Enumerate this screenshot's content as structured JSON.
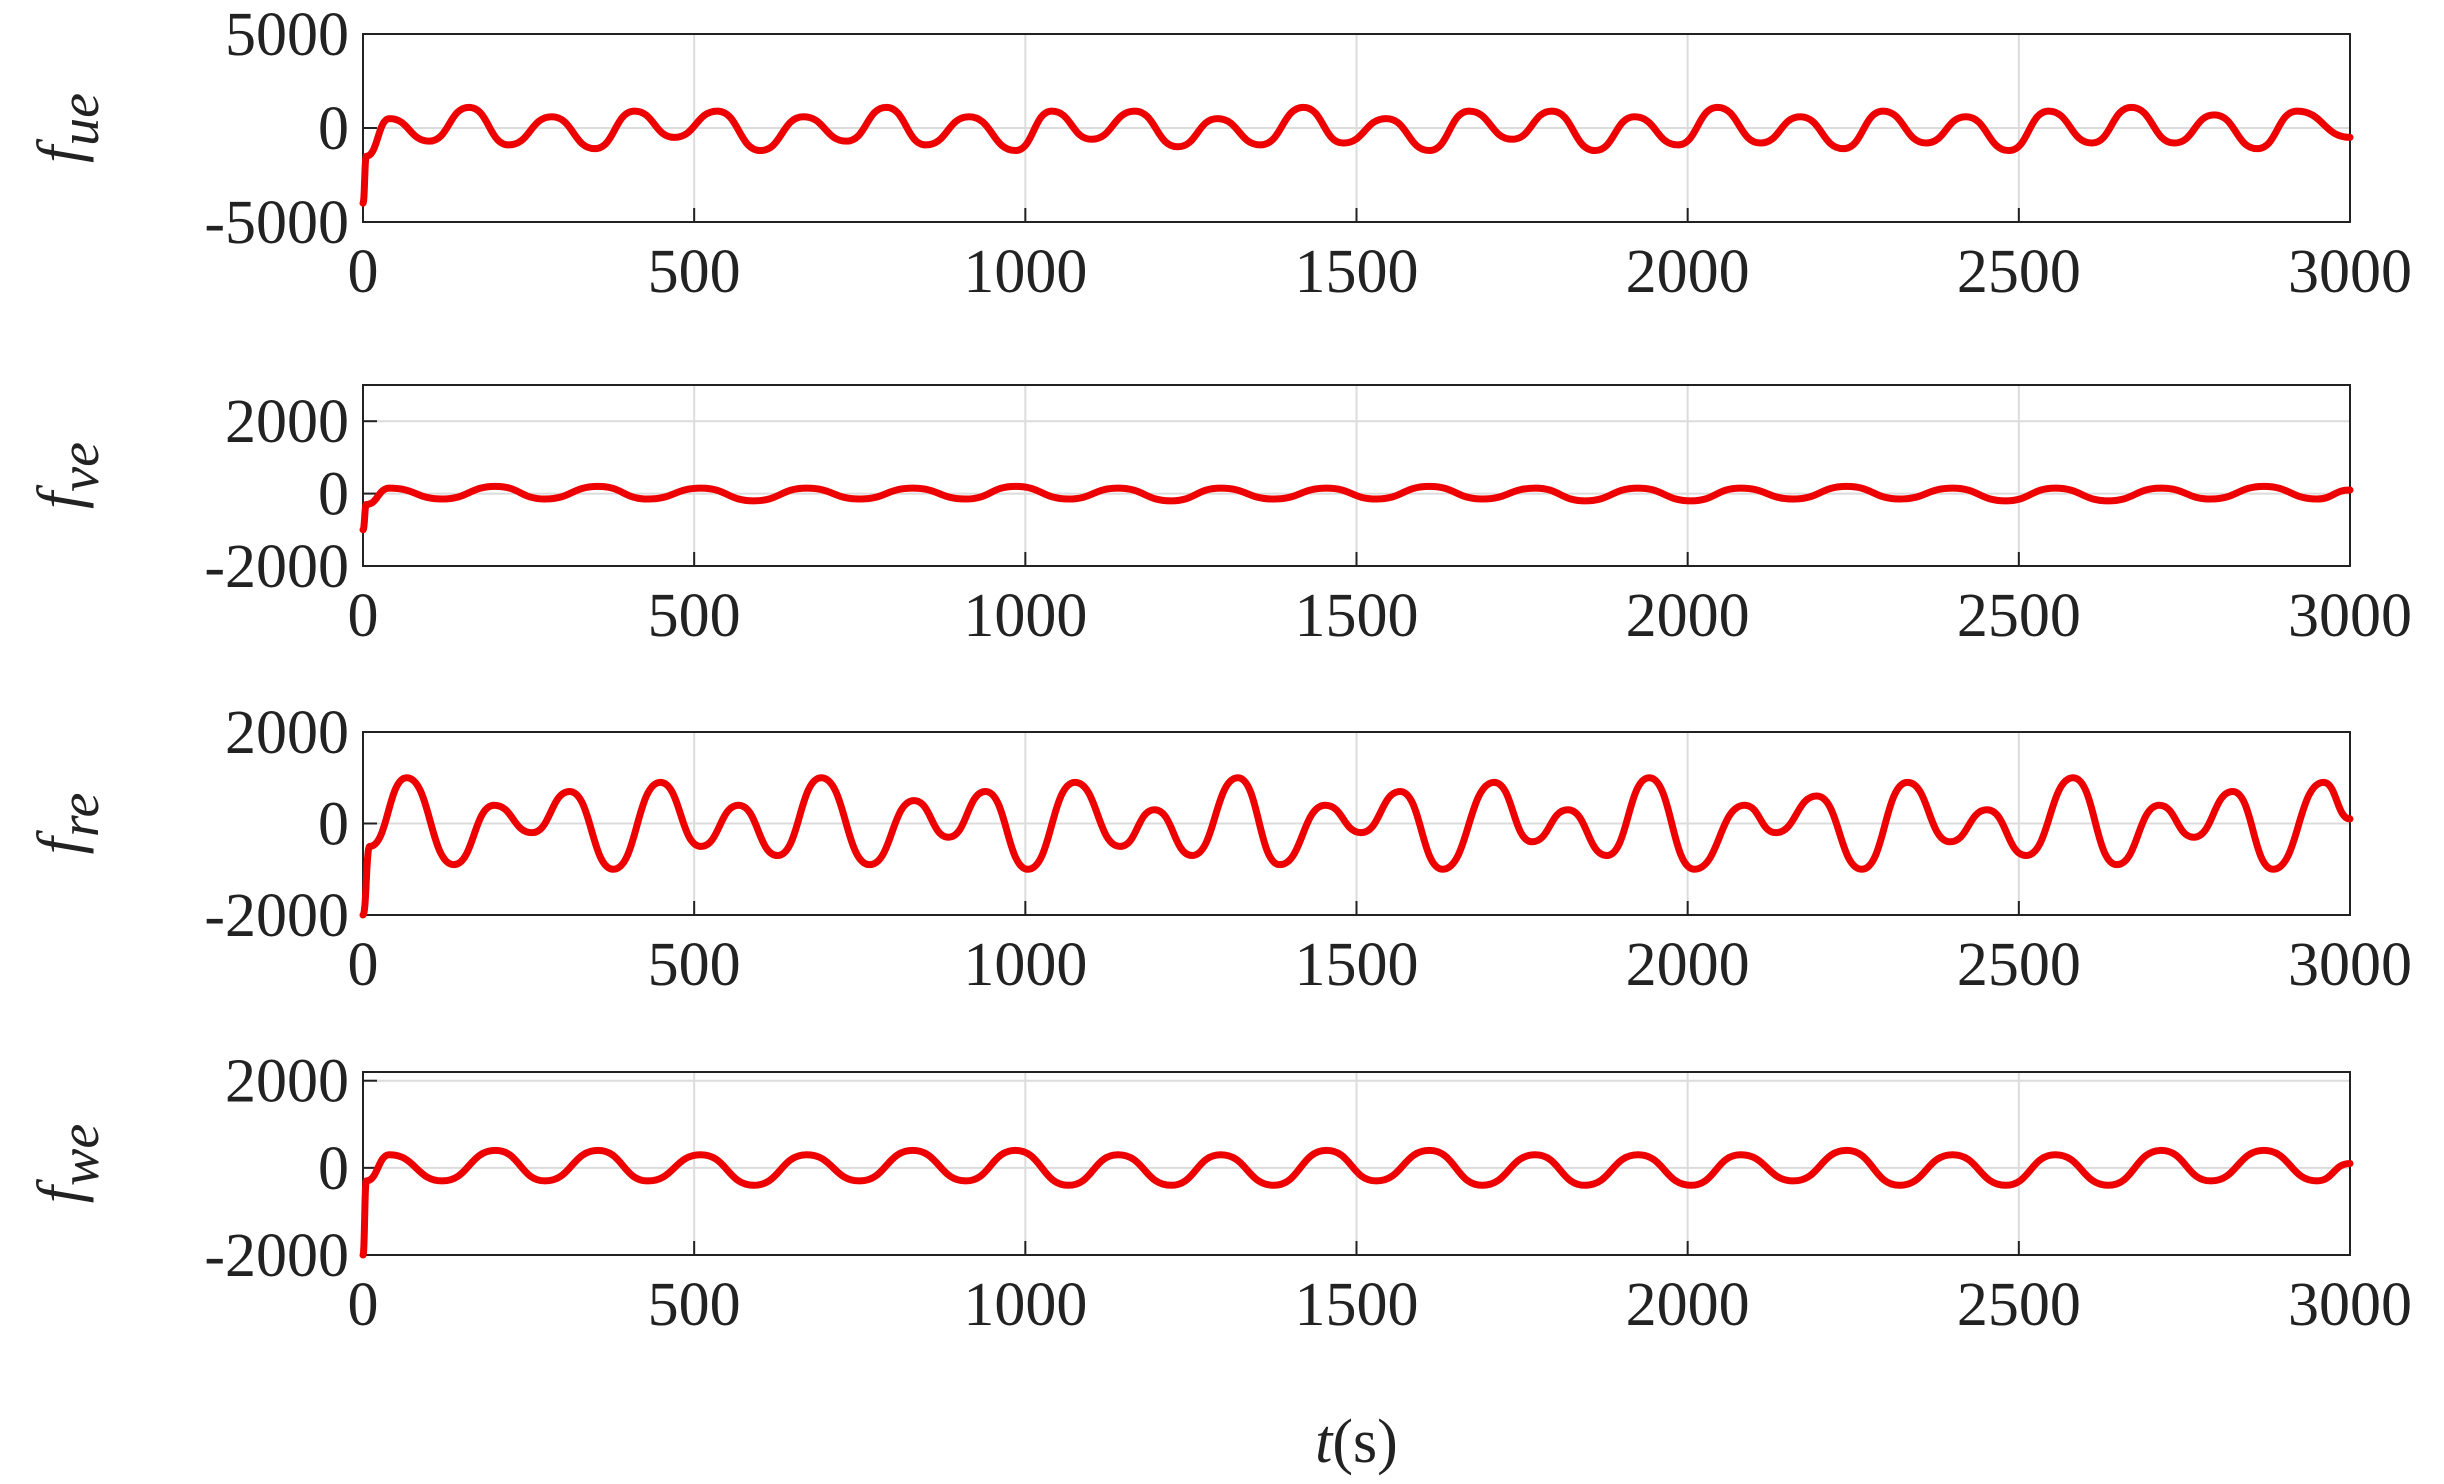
{
  "chart_data": [
    {
      "type": "line",
      "ylabel": "f",
      "ylabel_sub": "ue",
      "color": "#ee0000",
      "grid": true,
      "xlim": [
        0,
        3000
      ],
      "xticks": [
        0,
        500,
        1000,
        1500,
        2000,
        2500,
        3000
      ],
      "ylim": [
        -5000,
        5000
      ],
      "yticks": [
        -5000,
        0,
        5000
      ],
      "x": [
        0,
        5,
        40,
        100,
        160,
        220,
        285,
        350,
        410,
        470,
        535,
        600,
        665,
        730,
        790,
        850,
        915,
        985,
        1040,
        1100,
        1165,
        1230,
        1290,
        1355,
        1420,
        1480,
        1545,
        1610,
        1670,
        1735,
        1795,
        1860,
        1920,
        1985,
        2045,
        2110,
        2170,
        2235,
        2295,
        2360,
        2420,
        2485,
        2545,
        2610,
        2670,
        2735,
        2795,
        2860,
        2920,
        3000
      ],
      "values": [
        -4000,
        -1500,
        500,
        -700,
        1100,
        -900,
        600,
        -1100,
        900,
        -500,
        900,
        -1200,
        600,
        -700,
        1100,
        -900,
        600,
        -1200,
        900,
        -600,
        900,
        -1000,
        500,
        -900,
        1100,
        -800,
        500,
        -1200,
        900,
        -600,
        900,
        -1200,
        600,
        -900,
        1100,
        -800,
        600,
        -1100,
        900,
        -800,
        600,
        -1200,
        900,
        -800,
        1100,
        -800,
        700,
        -1100,
        900,
        -500
      ]
    },
    {
      "type": "line",
      "ylabel": "f",
      "ylabel_sub": "ve",
      "color": "#ee0000",
      "grid": true,
      "xlim": [
        0,
        3000
      ],
      "xticks": [
        0,
        500,
        1000,
        1500,
        2000,
        2500,
        3000
      ],
      "ylim": [
        -2000,
        3000
      ],
      "yticks": [
        -2000,
        0,
        2000
      ],
      "x": [
        0,
        5,
        40,
        120,
        200,
        275,
        355,
        430,
        510,
        590,
        670,
        750,
        830,
        910,
        985,
        1065,
        1140,
        1220,
        1295,
        1375,
        1455,
        1530,
        1610,
        1690,
        1770,
        1845,
        1925,
        2005,
        2080,
        2160,
        2240,
        2320,
        2400,
        2480,
        2555,
        2635,
        2715,
        2790,
        2870,
        2950,
        3000
      ],
      "values": [
        -1000,
        -300,
        150,
        -150,
        200,
        -150,
        200,
        -150,
        150,
        -200,
        150,
        -150,
        150,
        -150,
        200,
        -150,
        150,
        -200,
        150,
        -150,
        150,
        -150,
        200,
        -150,
        150,
        -200,
        150,
        -200,
        150,
        -150,
        200,
        -150,
        150,
        -200,
        150,
        -200,
        150,
        -150,
        200,
        -150,
        100
      ]
    },
    {
      "type": "line",
      "ylabel": "f",
      "ylabel_sub": "re",
      "color": "#ee0000",
      "grid": true,
      "xlim": [
        0,
        3000
      ],
      "xticks": [
        0,
        500,
        1000,
        1500,
        2000,
        2500,
        3000
      ],
      "ylim": [
        -2000,
        2000
      ],
      "yticks": [
        -2000,
        0,
        2000
      ],
      "x": [
        0,
        10,
        66,
        137,
        198,
        255,
        312,
        378,
        449,
        510,
        567,
        626,
        692,
        765,
        832,
        884,
        940,
        1004,
        1075,
        1143,
        1195,
        1252,
        1321,
        1384,
        1453,
        1507,
        1566,
        1630,
        1708,
        1765,
        1819,
        1878,
        1942,
        2010,
        2086,
        2133,
        2195,
        2263,
        2332,
        2396,
        2452,
        2511,
        2582,
        2648,
        2712,
        2764,
        2823,
        2884,
        2960,
        3000
      ],
      "values": [
        -2000,
        -500,
        1000,
        -900,
        400,
        -200,
        700,
        -1000,
        900,
        -500,
        400,
        -700,
        1000,
        -900,
        500,
        -300,
        700,
        -1000,
        900,
        -500,
        300,
        -700,
        1000,
        -900,
        400,
        -200,
        700,
        -1000,
        900,
        -400,
        300,
        -700,
        1000,
        -1000,
        400,
        -200,
        600,
        -1000,
        900,
        -400,
        300,
        -700,
        1000,
        -900,
        400,
        -300,
        700,
        -1000,
        900,
        100
      ]
    },
    {
      "type": "line",
      "ylabel": "f",
      "ylabel_sub": "we",
      "color": "#ee0000",
      "grid": true,
      "xlim": [
        0,
        3000
      ],
      "xticks": [
        0,
        500,
        1000,
        1500,
        2000,
        2500,
        3000
      ],
      "ylim": [
        -2000,
        2200
      ],
      "yticks": [
        -2000,
        0,
        2000
      ],
      "xlabel": "t",
      "xlabel_unit": "(s)",
      "x": [
        0,
        5,
        40,
        120,
        200,
        275,
        355,
        430,
        510,
        590,
        670,
        750,
        830,
        910,
        985,
        1065,
        1140,
        1220,
        1295,
        1375,
        1455,
        1530,
        1610,
        1690,
        1770,
        1845,
        1925,
        2005,
        2080,
        2160,
        2240,
        2320,
        2400,
        2480,
        2555,
        2635,
        2715,
        2790,
        2870,
        2950,
        3000
      ],
      "values": [
        -2000,
        -300,
        300,
        -300,
        400,
        -300,
        400,
        -300,
        300,
        -400,
        300,
        -300,
        400,
        -300,
        400,
        -400,
        300,
        -400,
        300,
        -400,
        400,
        -300,
        400,
        -400,
        300,
        -400,
        300,
        -400,
        300,
        -300,
        400,
        -400,
        300,
        -400,
        300,
        -400,
        400,
        -300,
        400,
        -300,
        100
      ]
    }
  ]
}
